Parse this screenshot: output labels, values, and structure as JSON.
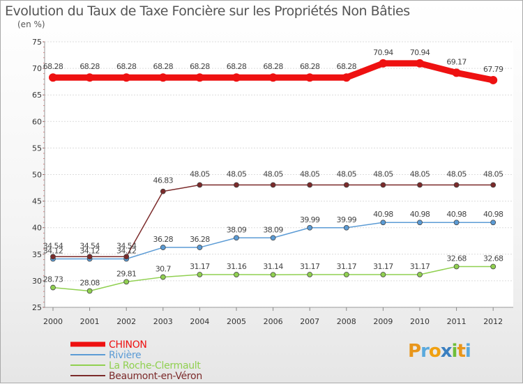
{
  "chart_data": {
    "type": "line",
    "title": "Evolution du Taux de Taxe Foncière sur les Propriétés Non Bâties",
    "subtitle": "(en %)",
    "xlabel": "",
    "ylabel": "(en %)",
    "ylim": [
      25,
      75
    ],
    "yticks": [
      "25",
      "30",
      "35",
      "40",
      "45",
      "50",
      "55",
      "60",
      "65",
      "70",
      "75"
    ],
    "categories": [
      "2000",
      "2001",
      "2002",
      "2003",
      "2004",
      "2005",
      "2006",
      "2007",
      "2008",
      "2009",
      "2010",
      "2011",
      "2012"
    ],
    "series": [
      {
        "name": "CHINON",
        "color": "#ee1111",
        "values": [
          68.28,
          68.28,
          68.28,
          68.28,
          68.28,
          68.28,
          68.28,
          68.28,
          68.28,
          70.94,
          70.94,
          69.17,
          67.79
        ],
        "labels": [
          "68.28",
          "68.28",
          "68.28",
          "68.28",
          "68.28",
          "68.28",
          "68.28",
          "68.28",
          "68.28",
          "70.94",
          "70.94",
          "69.17",
          "67.79"
        ]
      },
      {
        "name": "Rivière",
        "color": "#5b9bd5",
        "values": [
          34.12,
          34.12,
          34.12,
          36.28,
          36.28,
          38.09,
          38.09,
          39.99,
          39.99,
          40.98,
          40.98,
          40.98,
          40.98
        ],
        "labels": [
          "34.12",
          "34.12",
          "34.12",
          "36.28",
          "36.28",
          "38.09",
          "38.09",
          "39.99",
          "39.99",
          "40.98",
          "40.98",
          "40.98",
          "40.98"
        ]
      },
      {
        "name": "La Roche-Clermault",
        "color": "#90d050",
        "values": [
          28.73,
          28.08,
          29.81,
          30.7,
          31.17,
          31.16,
          31.14,
          31.17,
          31.17,
          31.17,
          31.17,
          32.68,
          32.68
        ],
        "labels": [
          "28.73",
          "28.08",
          "29.81",
          "30.7",
          "31.17",
          "31.16",
          "31.14",
          "31.17",
          "31.17",
          "31.17",
          "31.17",
          "32.68",
          "32.68"
        ]
      },
      {
        "name": "Beaumont-en-Véron",
        "color": "#7b2a2a",
        "values": [
          34.54,
          34.54,
          34.54,
          46.83,
          48.05,
          48.05,
          48.05,
          48.05,
          48.05,
          48.05,
          48.05,
          48.05,
          48.05
        ],
        "labels": [
          "34.54",
          "34.54",
          "34.54",
          "46.83",
          "48.05",
          "48.05",
          "48.05",
          "48.05",
          "48.05",
          "48.05",
          "48.05",
          "48.05",
          "48.05"
        ]
      }
    ],
    "legend_position": "bottom-left"
  },
  "logo": {
    "letters": [
      "P",
      "r",
      "o",
      "x",
      "i",
      "t",
      "i"
    ],
    "colors": [
      "#e8961c",
      "#5aa9dd",
      "#f0a010",
      "#3a7fc0",
      "#6fbe3a",
      "#e8961c",
      "#5aa9dd"
    ]
  }
}
